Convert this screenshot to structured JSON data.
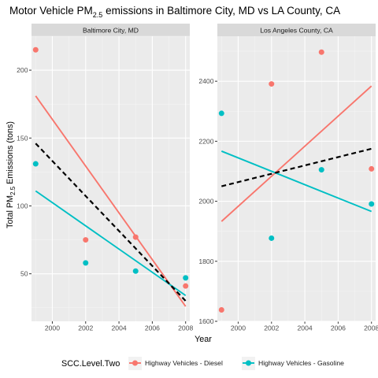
{
  "chart_data": {
    "type": "scatter",
    "title_main": "Motor Vehicle PM",
    "title_sub": "2.5",
    "title_rest": " emissions in Baltimore City, MD vs LA County, CA",
    "xlabel": "Year",
    "ylabel_main": "Total PM",
    "ylabel_sub": "2.5",
    "ylabel_rest": " Emissions (tons)",
    "legend": {
      "title": "SCC.Level.Two",
      "position": "bottom",
      "entries": [
        "Highway Vehicles - Diesel",
        "Highway Vehicles - Gasoline"
      ]
    },
    "colors": {
      "Diesel": "#F8766D",
      "Gasoline": "#00BFC4",
      "overall_trend": "#000000"
    },
    "facets": [
      {
        "label": "Baltimore City, MD",
        "xlim": [
          1998.75,
          2008.25
        ],
        "ylim": [
          15,
          225
        ],
        "xticks": [
          2000,
          2002,
          2004,
          2006,
          2008
        ],
        "yticks": [
          50,
          100,
          150,
          200
        ],
        "series": [
          {
            "name": "Highway Vehicles - Diesel",
            "x": [
              1999,
              2002,
              2005,
              2008
            ],
            "y": [
              215,
              75,
              77,
              41
            ],
            "trend": [
              [
                1999,
                181
              ],
              [
                2008,
                26
              ]
            ]
          },
          {
            "name": "Highway Vehicles - Gasoline",
            "x": [
              1999,
              2002,
              2005,
              2008
            ],
            "y": [
              131,
              58,
              52,
              47
            ],
            "trend": [
              [
                1999,
                111
              ],
              [
                2008,
                34
              ]
            ]
          }
        ],
        "overall_trend": [
          [
            1999,
            146
          ],
          [
            2008,
            30
          ]
        ]
      },
      {
        "label": "Los Angeles County, CA",
        "xlim": [
          1998.75,
          2008.25
        ],
        "ylim": [
          1600,
          2550
        ],
        "xticks": [
          2000,
          2002,
          2004,
          2006,
          2008
        ],
        "yticks": [
          1600,
          1800,
          2000,
          2200,
          2400
        ],
        "series": [
          {
            "name": "Highway Vehicles - Diesel",
            "x": [
              1999,
              2002,
              2005,
              2008
            ],
            "y": [
              1638,
              2391,
              2497,
              2108
            ],
            "trend": [
              [
                1999,
                1933
              ],
              [
                2008,
                2384
              ]
            ]
          },
          {
            "name": "Highway Vehicles - Gasoline",
            "x": [
              1999,
              2002,
              2005,
              2008
            ],
            "y": [
              2293,
              1877,
              2105,
              1991
            ],
            "trend": [
              [
                1999,
                2167
              ],
              [
                2008,
                1966
              ]
            ]
          }
        ],
        "overall_trend": [
          [
            1999,
            2050
          ],
          [
            2008,
            2175
          ]
        ]
      }
    ]
  }
}
